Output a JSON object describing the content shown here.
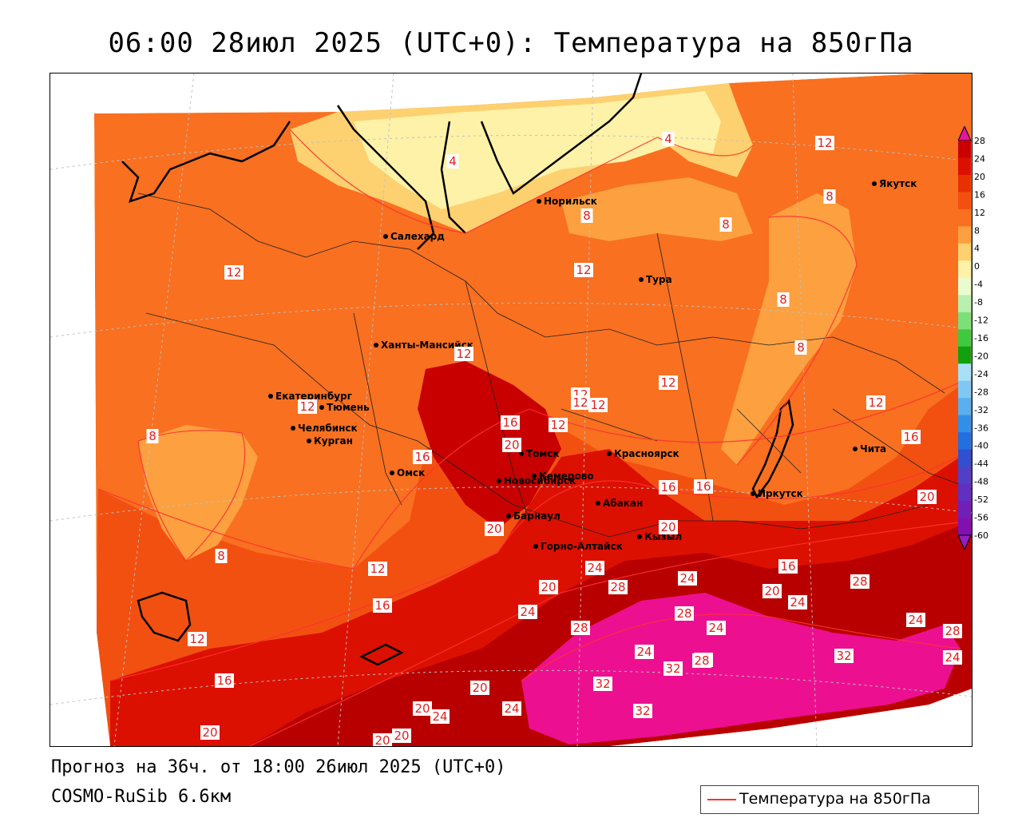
{
  "title": "06:00 28июл 2025 (UTC+0): Температура на 850гПа",
  "forecast_line": "Прогноз на 36ч. от 18:00 26июл 2025 (UTC+0)",
  "model_line": "COSMO-RuSib 6.6км",
  "legend": {
    "label": "Температура на 850гПа",
    "line_color": "#ff3030"
  },
  "colorbar": {
    "ticks": [
      "28",
      "24",
      "20",
      "16",
      "12",
      "8",
      "4",
      "0",
      "-4",
      "-8",
      "-12",
      "-16",
      "-20",
      "-24",
      "-28",
      "-32",
      "-36",
      "-40",
      "-44",
      "-48",
      "-52",
      "-56",
      "-60"
    ],
    "colors": [
      "#c80000",
      "#dc1000",
      "#e83000",
      "#f25010",
      "#f87020",
      "#fca040",
      "#fdd070",
      "#fef2a8",
      "#e8fcd0",
      "#b8f0b0",
      "#7ce07a",
      "#40c840",
      "#10a010",
      "#a8e0f8",
      "#80c8f4",
      "#58b0ee",
      "#3090e8",
      "#2070e0",
      "#3050d0",
      "#5040c8",
      "#6030c0",
      "#7020b8",
      "#8010b0"
    ],
    "top_arrow_color": "#e0189a",
    "bottom_arrow_color": "#9020c0"
  },
  "cities": [
    {
      "name": "Норильск"
    },
    {
      "name": "Якутск"
    },
    {
      "name": "Салехард"
    },
    {
      "name": "Тура"
    },
    {
      "name": "Ханты-Мансийск"
    },
    {
      "name": "Екатеринбург"
    },
    {
      "name": "Тюмень"
    },
    {
      "name": "Челябинск"
    },
    {
      "name": "Курган"
    },
    {
      "name": "Томск"
    },
    {
      "name": "Красноярск"
    },
    {
      "name": "Омск"
    },
    {
      "name": "Новосибирск"
    },
    {
      "name": "Кемерово"
    },
    {
      "name": "Абакан"
    },
    {
      "name": "Барнаул"
    },
    {
      "name": "Горно-Алтайск"
    },
    {
      "name": "Кызыл"
    },
    {
      "name": "Иркутск"
    },
    {
      "name": "Чита"
    }
  ],
  "contour_labels": [
    "12",
    "8",
    "4",
    "4",
    "8",
    "8",
    "12",
    "12",
    "12",
    "8",
    "8",
    "12",
    "12",
    "12",
    "12",
    "12",
    "8",
    "16",
    "16",
    "12",
    "16",
    "20",
    "16",
    "16",
    "12",
    "20",
    "20",
    "20",
    "16",
    "12",
    "16",
    "24",
    "28",
    "24",
    "20",
    "24",
    "20",
    "24",
    "28",
    "28",
    "24",
    "28",
    "28",
    "24",
    "28",
    "24",
    "24",
    "32",
    "32",
    "28",
    "20",
    "32",
    "24",
    "20",
    "20",
    "24",
    "20",
    "20",
    "32",
    "12",
    "16",
    "20",
    "8"
  ]
}
